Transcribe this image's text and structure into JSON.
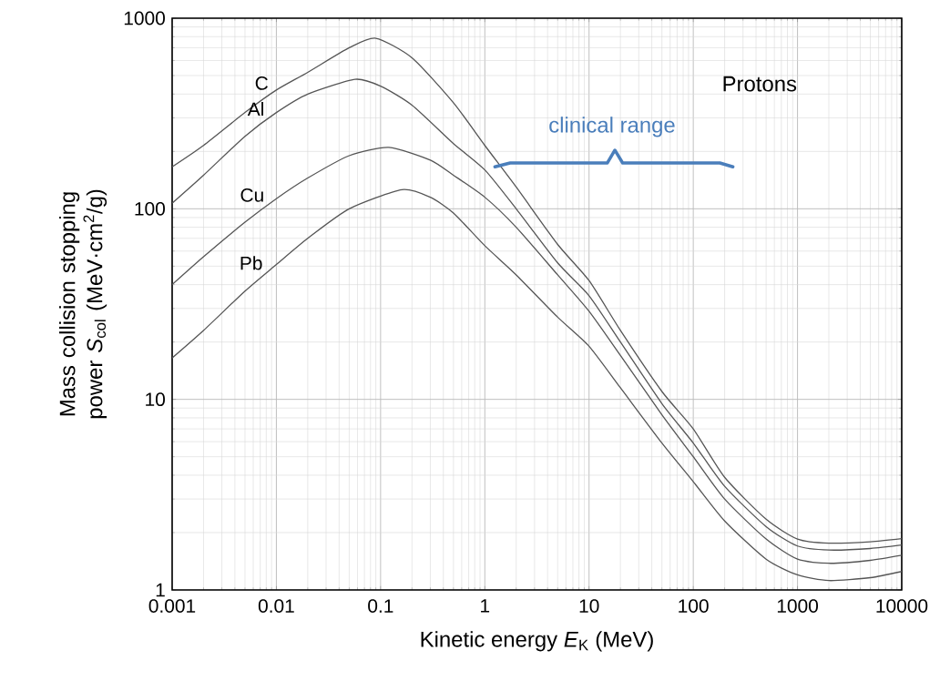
{
  "chart_data": {
    "type": "line",
    "xlabel": "Kinetic energy *E*$_{K}$ (MeV)",
    "ylabel": "Mass collision stopping power *S*$_{col}$ (MeV·cm$^{2}$/g)",
    "log": "xy",
    "grid": true,
    "line_style": "solid",
    "marker": "none",
    "xlim": [
      0.001,
      10000
    ],
    "ylim": [
      1,
      1000
    ],
    "xticks": [
      0.001,
      0.01,
      0.1,
      1,
      10,
      100,
      1000,
      10000
    ],
    "yticks": [
      1,
      10,
      100,
      1000
    ],
    "series": [
      {
        "name": "C",
        "color": "#555555",
        "x": [
          0.001,
          0.002,
          0.005,
          0.01,
          0.02,
          0.05,
          0.09,
          0.2,
          0.5,
          1,
          2,
          5,
          10,
          20,
          50,
          100,
          200,
          500,
          1000,
          2000,
          5000,
          10000
        ],
        "values": [
          166,
          215,
          320,
          420,
          520,
          700,
          785,
          620,
          360,
          215,
          130,
          65,
          42,
          23,
          11,
          7,
          3.9,
          2.35,
          1.85,
          1.76,
          1.79,
          1.86
        ]
      },
      {
        "name": "Al",
        "color": "#555555",
        "x": [
          0.001,
          0.002,
          0.005,
          0.01,
          0.02,
          0.057,
          0.1,
          0.2,
          0.5,
          1,
          2,
          5,
          10,
          20,
          50,
          100,
          200,
          500,
          1000,
          2000,
          5000,
          10000
        ],
        "values": [
          107,
          150,
          240,
          320,
          400,
          478,
          440,
          350,
          220,
          160,
          100,
          52,
          35,
          20,
          9.5,
          5.9,
          3.5,
          2.15,
          1.7,
          1.62,
          1.65,
          1.72
        ]
      },
      {
        "name": "Cu",
        "color": "#555555",
        "x": [
          0.001,
          0.002,
          0.005,
          0.01,
          0.02,
          0.05,
          0.12,
          0.3,
          0.5,
          1,
          2,
          5,
          10,
          20,
          50,
          100,
          200,
          500,
          1000,
          2000,
          5000,
          10000
        ],
        "values": [
          40,
          56,
          85,
          113,
          145,
          190,
          210,
          180,
          150,
          115,
          80,
          45,
          29,
          17,
          8.3,
          5.0,
          3.0,
          1.85,
          1.45,
          1.38,
          1.43,
          1.52
        ]
      },
      {
        "name": "Pb",
        "color": "#555555",
        "x": [
          0.001,
          0.002,
          0.005,
          0.01,
          0.02,
          0.05,
          0.16,
          0.3,
          0.5,
          1,
          2,
          5,
          10,
          20,
          50,
          100,
          200,
          500,
          1000,
          2000,
          5000,
          10000
        ],
        "values": [
          16.5,
          23,
          37,
          51,
          70,
          100,
          126,
          115,
          95,
          64,
          45,
          27,
          19,
          11.5,
          5.9,
          3.7,
          2.3,
          1.45,
          1.2,
          1.12,
          1.16,
          1.25
        ]
      },
      {
        "color": "#4a7ebb",
        "x": [
          1.25,
          1.75,
          15,
          17.7,
          21,
          180,
          240
        ],
        "values": [
          166,
          174,
          174,
          203,
          174,
          174,
          166
        ]
      }
    ],
    "annotations": [
      "clinical range",
      "Protons"
    ]
  }
}
